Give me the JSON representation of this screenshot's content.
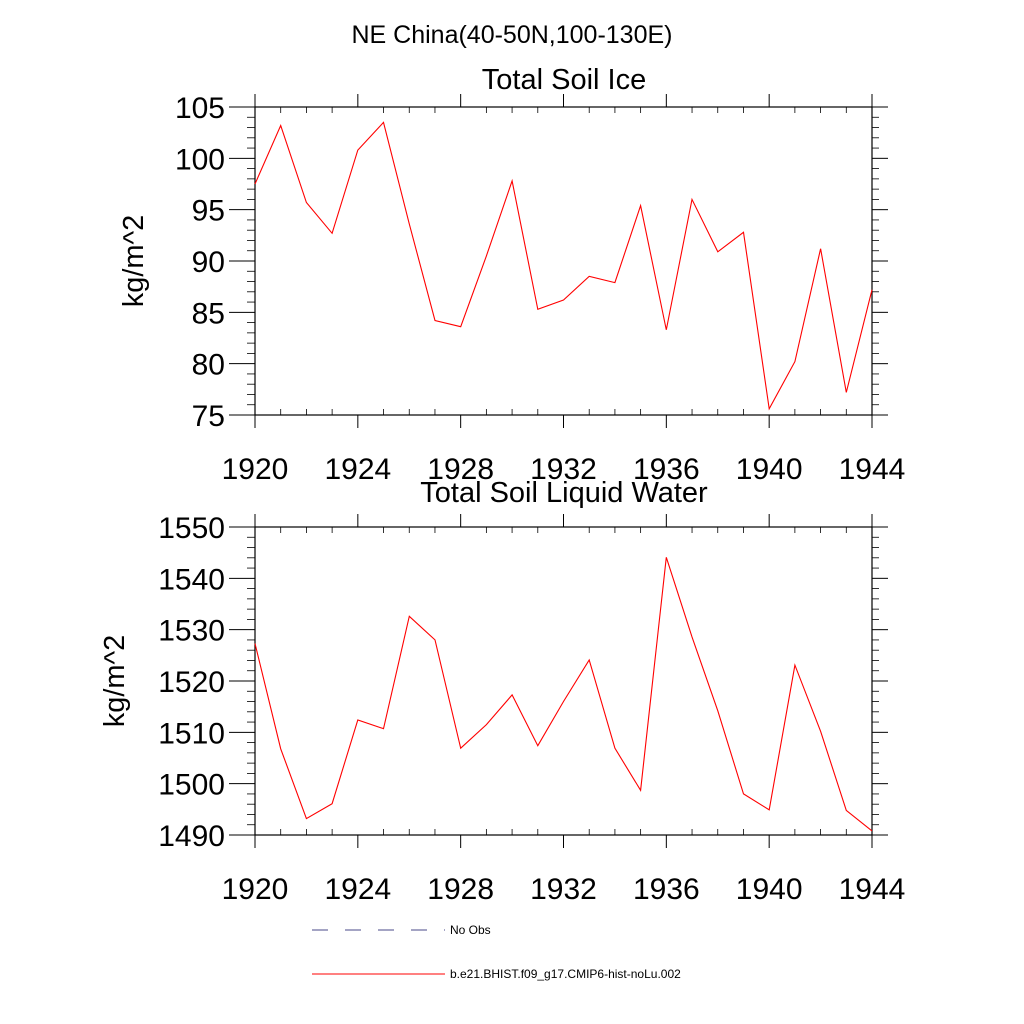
{
  "figure": {
    "title": "NE China(40-50N,100-130E)"
  },
  "legend": {
    "entries": [
      {
        "label": "No Obs",
        "style": "dashed",
        "color": "#4a4a8a"
      },
      {
        "label": "b.e21.BHIST.f09_g17.CMIP6-hist-noLu.002",
        "style": "solid",
        "color": "#ff0000"
      }
    ]
  },
  "chart_data": [
    {
      "type": "line",
      "title": "Total Soil Ice",
      "xlabel": "",
      "ylabel": "kg/m^2",
      "xlim": [
        1920,
        1944
      ],
      "ylim": [
        75,
        105
      ],
      "xticks": [
        1920,
        1924,
        1928,
        1932,
        1936,
        1940,
        1944
      ],
      "yticks": [
        75,
        80,
        85,
        90,
        95,
        100,
        105
      ],
      "grid": false,
      "legend_position": "bottom",
      "series": [
        {
          "name": "b.e21.BHIST.f09_g17.CMIP6-hist-noLu.002",
          "color": "#ff0000",
          "x": [
            1920,
            1921,
            1922,
            1923,
            1924,
            1925,
            1926,
            1927,
            1928,
            1929,
            1930,
            1931,
            1932,
            1933,
            1934,
            1935,
            1936,
            1937,
            1938,
            1939,
            1940,
            1941,
            1942,
            1943,
            1944
          ],
          "y": [
            97.5,
            103.2,
            95.7,
            92.7,
            100.8,
            103.5,
            93.6,
            84.2,
            83.6,
            90.5,
            97.8,
            85.3,
            86.2,
            88.5,
            87.9,
            95.4,
            83.3,
            96.0,
            90.9,
            92.8,
            75.6,
            80.2,
            91.2,
            77.2,
            87.2
          ]
        }
      ]
    },
    {
      "type": "line",
      "title": "Total Soil Liquid Water",
      "xlabel": "",
      "ylabel": "kg/m^2",
      "xlim": [
        1920,
        1944
      ],
      "ylim": [
        1490,
        1550
      ],
      "xticks": [
        1920,
        1924,
        1928,
        1932,
        1936,
        1940,
        1944
      ],
      "yticks": [
        1490,
        1500,
        1510,
        1520,
        1530,
        1540,
        1550
      ],
      "grid": false,
      "legend_position": "bottom",
      "series": [
        {
          "name": "b.e21.BHIST.f09_g17.CMIP6-hist-noLu.002",
          "color": "#ff0000",
          "x": [
            1920,
            1921,
            1922,
            1923,
            1924,
            1925,
            1926,
            1927,
            1928,
            1929,
            1930,
            1931,
            1932,
            1933,
            1934,
            1935,
            1936,
            1937,
            1938,
            1939,
            1940,
            1941,
            1942,
            1943,
            1944
          ],
          "y": [
            1527.3,
            1506.8,
            1493.2,
            1496.1,
            1512.4,
            1510.7,
            1532.6,
            1528.0,
            1506.9,
            1511.5,
            1517.3,
            1507.4,
            1516.0,
            1524.1,
            1506.9,
            1498.7,
            1544.1,
            1528.6,
            1514.2,
            1498.0,
            1494.9,
            1523.1,
            1510.2,
            1494.8,
            1490.8
          ]
        }
      ]
    }
  ]
}
